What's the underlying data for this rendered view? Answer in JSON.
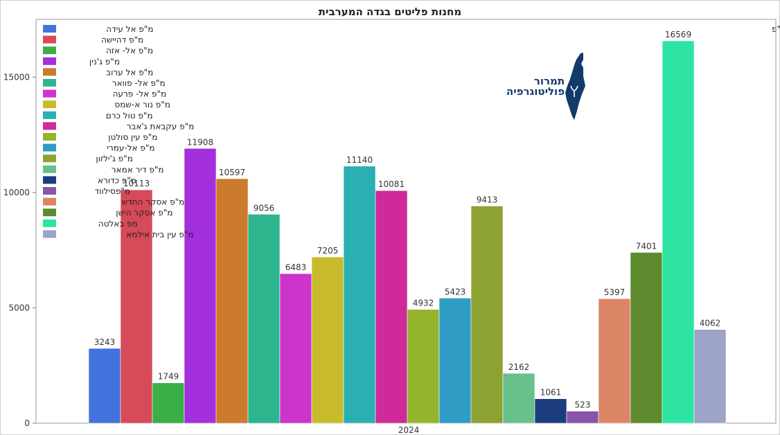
{
  "chart_data": {
    "type": "bar",
    "title": "מחנות פליטים בגדה המערבית",
    "source": "מקור: למ\"ס רש\"פ",
    "xlabel": "",
    "ylabel": "",
    "categories": [
      "2024"
    ],
    "ylim": [
      0,
      17500
    ],
    "yticks": [
      0,
      5000,
      10000,
      15000
    ],
    "grid": false,
    "legend_position": "top-left",
    "series": [
      {
        "name": "מ\"פ אל עידה",
        "value": 3243,
        "color": "#4472dc"
      },
      {
        "name": "מ\"פ דהיישה",
        "value": 10113,
        "color": "#d64a59"
      },
      {
        "name": "מ\"פ אל- אזה",
        "value": 1749,
        "color": "#3cae48"
      },
      {
        "name": "מ\"פ ג'נין",
        "value": 11908,
        "color": "#a42fdc"
      },
      {
        "name": "מ\"פ אל ערוב",
        "value": 10597,
        "color": "#cc7a2c"
      },
      {
        "name": "מ\"פ אל- פוואר",
        "value": 9056,
        "color": "#2db58e"
      },
      {
        "name": "מ\"פ אל- פרעה",
        "value": 6483,
        "color": "#cc34cc"
      },
      {
        "name": "מ\"פ נור א-שמס",
        "value": 7205,
        "color": "#c8bc2c"
      },
      {
        "name": "מ\"פ טול כרם",
        "value": 11140,
        "color": "#2aafb2"
      },
      {
        "name": "מ\"פ עקבאת ג'אבר",
        "value": 10081,
        "color": "#cf2a9a"
      },
      {
        "name": "מ\"פ עין סולטן",
        "value": 4932,
        "color": "#93b42c"
      },
      {
        "name": "מ\"פ אל-עמרי",
        "value": 5423,
        "color": "#2e9cc4"
      },
      {
        "name": "מ\"פ ג'ילזון",
        "value": 9413,
        "color": "#8ca232"
      },
      {
        "name": "מ\"פ דיר אמאר",
        "value": 2162,
        "color": "#68c08a"
      },
      {
        "name": "מ\"פ כדורא",
        "value": 1061,
        "color": "#1b3d80"
      },
      {
        "name": "מ\"פסילווד",
        "value": 523,
        "color": "#8a55a8"
      },
      {
        "name": "מ\"פ אסקר החדש",
        "value": 5397,
        "color": "#db8466"
      },
      {
        "name": "מ\"פ אסקר הישן",
        "value": 7401,
        "color": "#5e8a2e"
      },
      {
        "name": "מפ באלטה",
        "value": 16569,
        "color": "#2ee4a2"
      },
      {
        "name": "מ\"פ עין בית אילמא",
        "value": 4062,
        "color": "#9ca4c8"
      }
    ]
  },
  "logo": {
    "line1": "תמרור",
    "line2": "פוליטוגרפיה"
  }
}
